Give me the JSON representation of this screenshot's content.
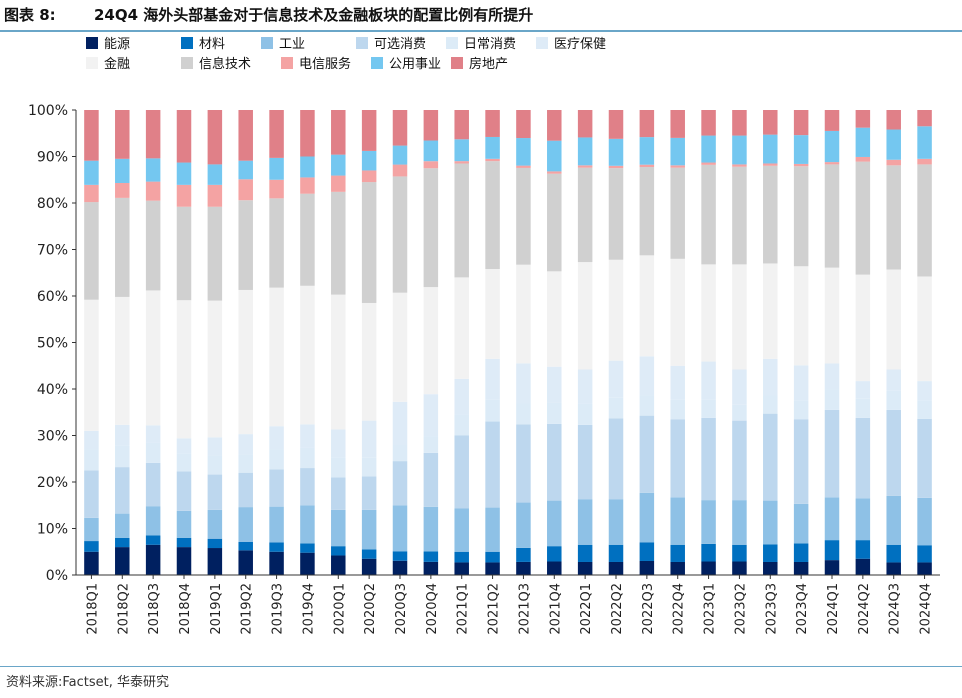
{
  "header": {
    "label": "图表 8:",
    "title": "24Q4 海外头部基金对于信息技术及金融板块的配置比例有所提升"
  },
  "footer": {
    "source": "资料来源:Factset, 华泰研究"
  },
  "chart_data": {
    "type": "bar",
    "stacked": true,
    "categories": [
      "2018Q1",
      "2018Q2",
      "2018Q3",
      "2018Q4",
      "2019Q1",
      "2019Q2",
      "2019Q3",
      "2019Q4",
      "2020Q1",
      "2020Q2",
      "2020Q3",
      "2020Q4",
      "2021Q1",
      "2021Q2",
      "2021Q3",
      "2021Q4",
      "2022Q1",
      "2022Q2",
      "2022Q3",
      "2022Q4",
      "2023Q1",
      "2023Q2",
      "2023Q3",
      "2023Q4",
      "2024Q1",
      "2024Q2",
      "2024Q3",
      "2024Q4"
    ],
    "ylim": [
      0,
      100
    ],
    "yticks": [
      "0%",
      "10%",
      "20%",
      "30%",
      "40%",
      "50%",
      "60%",
      "70%",
      "80%",
      "90%",
      "100%"
    ],
    "legend_position": "top",
    "grid": false,
    "series": [
      {
        "name": "能源",
        "color": "#002060",
        "values": [
          5.0,
          6.0,
          6.5,
          6.0,
          5.8,
          5.3,
          5.0,
          4.8,
          4.2,
          3.5,
          3.0,
          2.8,
          2.7,
          2.7,
          2.8,
          2.9,
          2.8,
          2.8,
          3.0,
          2.8,
          2.9,
          2.9,
          2.8,
          2.8,
          3.2,
          3.5,
          2.7,
          2.7
        ]
      },
      {
        "name": "材料",
        "color": "#0070c0",
        "values": [
          2.3,
          2.0,
          2.0,
          2.0,
          2.0,
          1.8,
          2.0,
          2.0,
          2.0,
          2.0,
          2.0,
          2.2,
          2.3,
          2.3,
          3.0,
          3.3,
          3.7,
          3.7,
          4.0,
          3.7,
          3.8,
          3.6,
          3.8,
          4.0,
          4.3,
          4.0,
          3.8,
          3.7
        ]
      },
      {
        "name": "工业",
        "color": "#8ec1e6",
        "values": [
          5.0,
          5.2,
          6.3,
          5.8,
          6.2,
          7.5,
          7.7,
          8.2,
          7.8,
          8.5,
          9.7,
          9.5,
          9.3,
          9.5,
          9.7,
          9.8,
          9.8,
          9.8,
          10.6,
          10.2,
          9.4,
          9.6,
          9.4,
          8.5,
          9.2,
          9.0,
          10.5,
          10.2
        ]
      },
      {
        "name": "可选消费",
        "color": "#bdd7ee",
        "values": [
          10.2,
          10.0,
          9.3,
          8.5,
          7.6,
          7.4,
          8.0,
          8.0,
          7.0,
          7.2,
          9.3,
          11.5,
          15.7,
          18.5,
          16.7,
          16.5,
          16.0,
          17.4,
          16.5,
          16.8,
          17.7,
          17.1,
          18.7,
          18.2,
          18.8,
          17.3,
          18.5,
          17.0
        ]
      },
      {
        "name": "日常消费",
        "color": "#dcebf7",
        "values": [
          4.5,
          4.7,
          4.3,
          3.8,
          4.0,
          4.0,
          4.3,
          4.4,
          4.3,
          4.0,
          3.5,
          3.5,
          4.5,
          4.7,
          4.5,
          4.5,
          4.5,
          4.4,
          4.3,
          4.2,
          3.9,
          3.4,
          3.9,
          4.0,
          4.4,
          4.1,
          4.1,
          3.9
        ]
      },
      {
        "name": "医疗保健",
        "color": "#deebf7",
        "values": [
          4.0,
          4.4,
          3.8,
          3.3,
          4.0,
          4.3,
          5.0,
          5.0,
          6.0,
          8.0,
          9.0,
          9.0,
          7.7,
          8.8,
          8.6,
          7.8,
          7.4,
          8.0,
          8.4,
          7.3,
          8.2,
          7.6,
          7.9,
          7.6,
          5.6,
          3.8,
          4.6,
          4.2
        ]
      },
      {
        "name": "金融",
        "color": "#f2f2f2",
        "values": [
          28.2,
          27.5,
          29.0,
          29.7,
          29.4,
          31.0,
          29.8,
          29.8,
          29.0,
          25.3,
          23.0,
          22.8,
          21.8,
          19.3,
          21.1,
          20.5,
          23.1,
          21.7,
          21.6,
          23.0,
          20.9,
          22.6,
          20.5,
          21.3,
          20.6,
          22.9,
          21.5,
          22.5
        ]
      },
      {
        "name": "信息技术",
        "color": "#d0d0d0",
        "values": [
          21.0,
          21.3,
          19.3,
          20.1,
          20.2,
          19.3,
          19.2,
          19.8,
          22.1,
          26.0,
          24.5,
          25.3,
          24.5,
          23.2,
          20.7,
          21.0,
          20.3,
          19.7,
          18.9,
          19.6,
          21.4,
          21.0,
          21.0,
          21.5,
          22.2,
          24.3,
          22.4,
          24.1
        ]
      },
      {
        "name": "电信服务",
        "color": "#f4a3a3",
        "values": [
          3.7,
          3.2,
          4.1,
          4.7,
          4.7,
          4.5,
          4.0,
          3.5,
          3.5,
          2.5,
          2.5,
          1.5,
          0.5,
          0.5,
          0.5,
          0.5,
          0.5,
          0.5,
          0.5,
          0.5,
          0.5,
          0.5,
          0.5,
          0.5,
          0.5,
          1.0,
          1.2,
          1.2
        ]
      },
      {
        "name": "公用事业",
        "color": "#74c7f0",
        "values": [
          5.2,
          5.2,
          5.0,
          4.8,
          4.4,
          4.0,
          4.7,
          4.5,
          4.5,
          4.2,
          4.0,
          4.4,
          4.7,
          4.7,
          5.9,
          6.6,
          6.0,
          5.8,
          5.9,
          5.9,
          5.8,
          6.2,
          6.2,
          6.2,
          6.7,
          6.3,
          6.5,
          7.0
        ]
      },
      {
        "name": "房地产",
        "color": "#e08088",
        "values": [
          10.9,
          10.5,
          10.4,
          11.3,
          11.7,
          10.9,
          10.3,
          10.0,
          9.6,
          8.8,
          7.5,
          6.5,
          6.3,
          5.8,
          6.0,
          6.6,
          5.9,
          6.2,
          5.8,
          6.0,
          5.5,
          5.5,
          5.3,
          5.4,
          4.5,
          3.8,
          4.2,
          3.5
        ]
      }
    ]
  }
}
